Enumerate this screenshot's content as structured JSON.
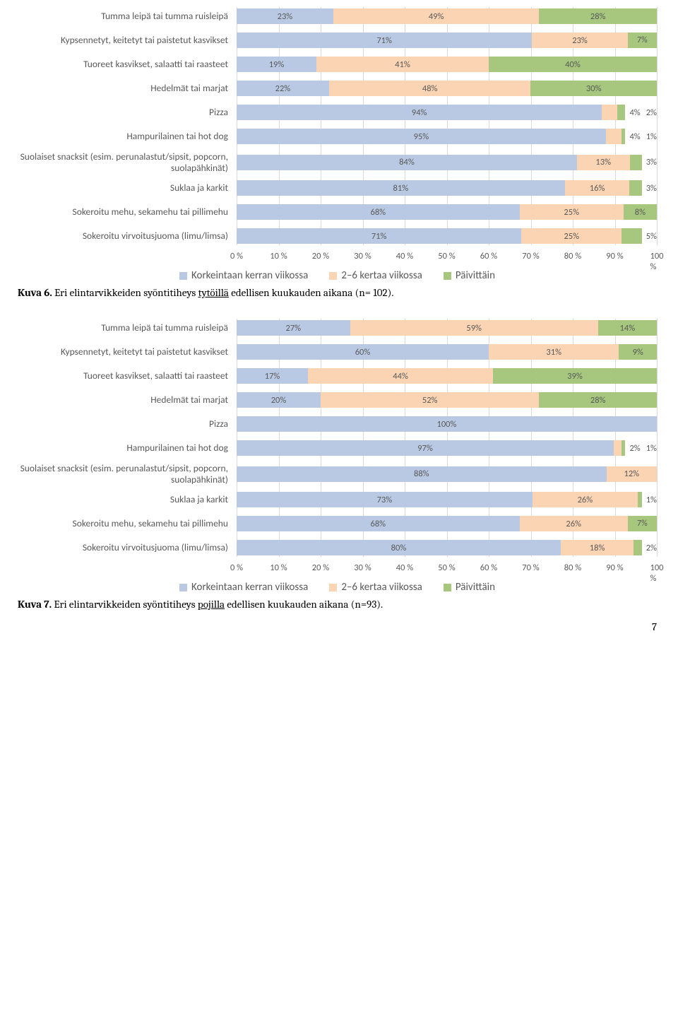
{
  "colors": {
    "seg1": "#b9c9e3",
    "seg2": "#fad4b3",
    "seg3": "#a6c77d",
    "grid": "#d9d9d9",
    "text": "#595959"
  },
  "legend": {
    "items": [
      {
        "label": "Korkeintaan kerran viikossa",
        "color": "#b9c9e3"
      },
      {
        "label": "2–6 kertaa viikossa",
        "color": "#fad4b3"
      },
      {
        "label": "Päivittäin",
        "color": "#a6c77d"
      }
    ]
  },
  "x_ticks": [
    "0 %",
    "10 %",
    "20 %",
    "30 %",
    "40 %",
    "50 %",
    "60 %",
    "70 %",
    "80 %",
    "90 %",
    "100 %"
  ],
  "chart1": {
    "rows": [
      {
        "label": "Tumma leipä tai tumma ruisleipä",
        "segs": [
          23,
          49,
          28
        ]
      },
      {
        "label": "Kypsennetyt, keitetyt tai paistetut kasvikset",
        "segs": [
          71,
          23,
          7
        ]
      },
      {
        "label": "Tuoreet kasvikset, salaatti tai raasteet",
        "segs": [
          19,
          41,
          40
        ]
      },
      {
        "label": "Hedelmät tai marjat",
        "segs": [
          22,
          48,
          30
        ]
      },
      {
        "label": "Pizza",
        "segs": [
          94,
          4,
          2
        ]
      },
      {
        "label": "Hampurilainen tai hot dog",
        "segs": [
          95,
          4,
          1
        ]
      },
      {
        "label": "Suolaiset snacksit (esim. perunalastut/sipsit, popcorn, suolapähkinät)",
        "segs": [
          84,
          13,
          3
        ]
      },
      {
        "label": "Suklaa ja karkit",
        "segs": [
          81,
          16,
          3
        ]
      },
      {
        "label": "Sokeroitu mehu, sekamehu tai pillimehu",
        "segs": [
          68,
          25,
          8
        ]
      },
      {
        "label": "Sokeroitu virvoitusjuoma (limu/limsa)",
        "segs": [
          71,
          25,
          5
        ]
      }
    ]
  },
  "caption1": {
    "prefix": "Kuva 6.",
    "mid1": " Eri elintarvikkeiden syöntitiheys ",
    "underline": "tytöillä",
    "mid2": " edellisen kuukauden aikana (n= 102)."
  },
  "chart2": {
    "rows": [
      {
        "label": "Tumma leipä tai tumma ruisleipä",
        "segs": [
          27,
          59,
          14
        ]
      },
      {
        "label": "Kypsennetyt, keitetyt tai paistetut kasvikset",
        "segs": [
          60,
          31,
          9
        ]
      },
      {
        "label": "Tuoreet kasvikset, salaatti tai raasteet",
        "segs": [
          17,
          44,
          39
        ]
      },
      {
        "label": "Hedelmät tai marjat",
        "segs": [
          20,
          52,
          28
        ]
      },
      {
        "label": "Pizza",
        "segs": [
          100,
          0,
          0
        ]
      },
      {
        "label": "Hampurilainen tai hot dog",
        "segs": [
          97,
          2,
          1
        ]
      },
      {
        "label": "Suolaiset snacksit (esim. perunalastut/sipsit, popcorn, suolapähkinät)",
        "segs": [
          88,
          12,
          0
        ]
      },
      {
        "label": "Suklaa ja karkit",
        "segs": [
          73,
          26,
          1
        ]
      },
      {
        "label": "Sokeroitu mehu, sekamehu tai pillimehu",
        "segs": [
          68,
          26,
          7
        ]
      },
      {
        "label": "Sokeroitu virvoitusjuoma (limu/limsa)",
        "segs": [
          80,
          18,
          2
        ]
      }
    ]
  },
  "caption2": {
    "prefix": "Kuva 7.",
    "mid1": " Eri elintarvikkeiden syöntitiheys ",
    "underline": "pojilla",
    "mid2": " edellisen kuukauden aikana (n=93)."
  },
  "page_number": "7"
}
